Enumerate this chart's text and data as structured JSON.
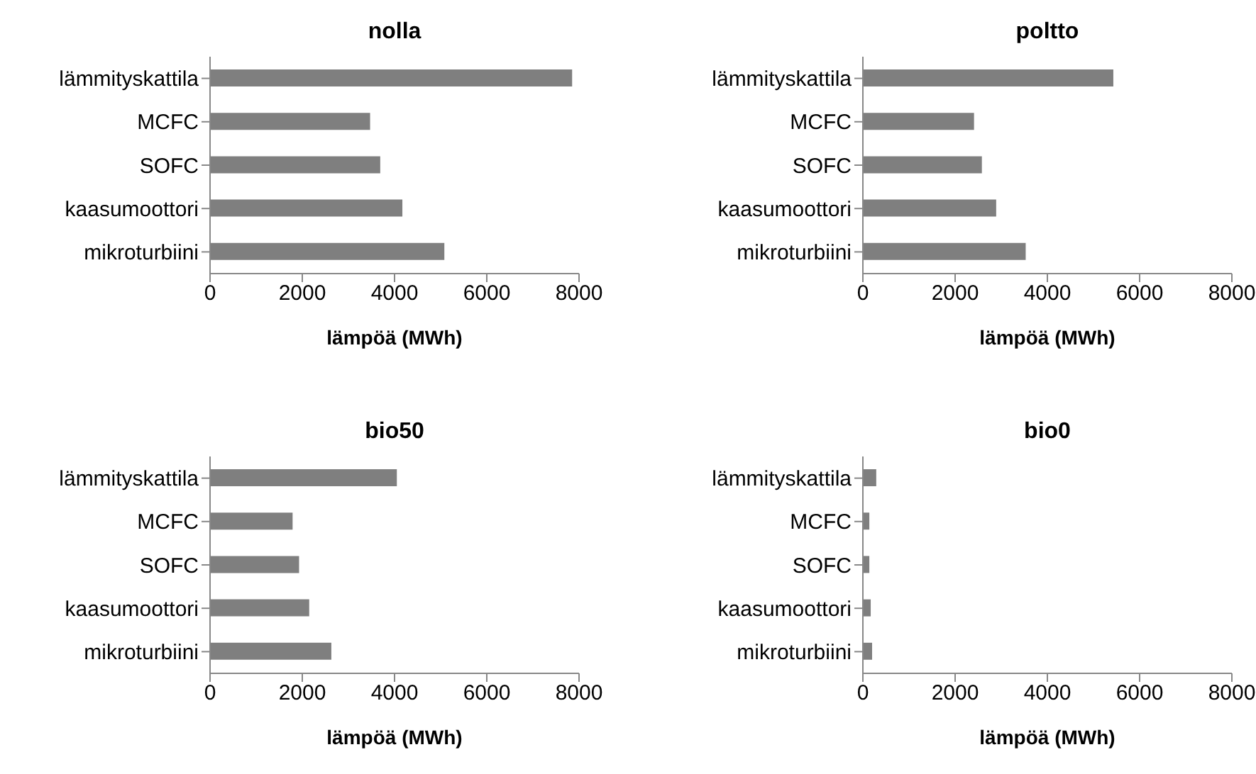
{
  "chart_data": [
    {
      "type": "bar",
      "orientation": "horizontal",
      "title": "nolla",
      "xlabel": "lämpöä (MWh)",
      "categories": [
        "lämmityskattila",
        "MCFC",
        "SOFC",
        "kaasumoottori",
        "mikroturbiini"
      ],
      "values": [
        7850,
        3470,
        3690,
        4170,
        5080
      ],
      "color": "#7f7f7f",
      "xlim": [
        0,
        8000
      ],
      "xticks": [
        0,
        2000,
        4000,
        6000,
        8000
      ]
    },
    {
      "type": "bar",
      "orientation": "horizontal",
      "title": "poltto",
      "xlabel": "lämpöä (MWh)",
      "categories": [
        "lämmityskattila",
        "MCFC",
        "SOFC",
        "kaasumoottori",
        "mikroturbiini"
      ],
      "values": [
        5430,
        2410,
        2580,
        2890,
        3530
      ],
      "color": "#7f7f7f",
      "xlim": [
        0,
        8000
      ],
      "xticks": [
        0,
        2000,
        4000,
        6000,
        8000
      ]
    },
    {
      "type": "bar",
      "orientation": "horizontal",
      "title": "bio50",
      "xlabel": "lämpöä (MWh)",
      "categories": [
        "lämmityskattila",
        "MCFC",
        "SOFC",
        "kaasumoottori",
        "mikroturbiini"
      ],
      "values": [
        4050,
        1790,
        1930,
        2150,
        2630
      ],
      "color": "#7f7f7f",
      "xlim": [
        0,
        8000
      ],
      "xticks": [
        0,
        2000,
        4000,
        6000,
        8000
      ]
    },
    {
      "type": "bar",
      "orientation": "horizontal",
      "title": "bio0",
      "xlabel": "lämpöä (MWh)",
      "categories": [
        "lämmityskattila",
        "MCFC",
        "SOFC",
        "kaasumoottori",
        "mikroturbiini"
      ],
      "values": [
        290,
        140,
        140,
        170,
        200
      ],
      "color": "#7f7f7f",
      "xlim": [
        0,
        8000
      ],
      "xticks": [
        0,
        2000,
        4000,
        6000,
        8000
      ]
    }
  ]
}
